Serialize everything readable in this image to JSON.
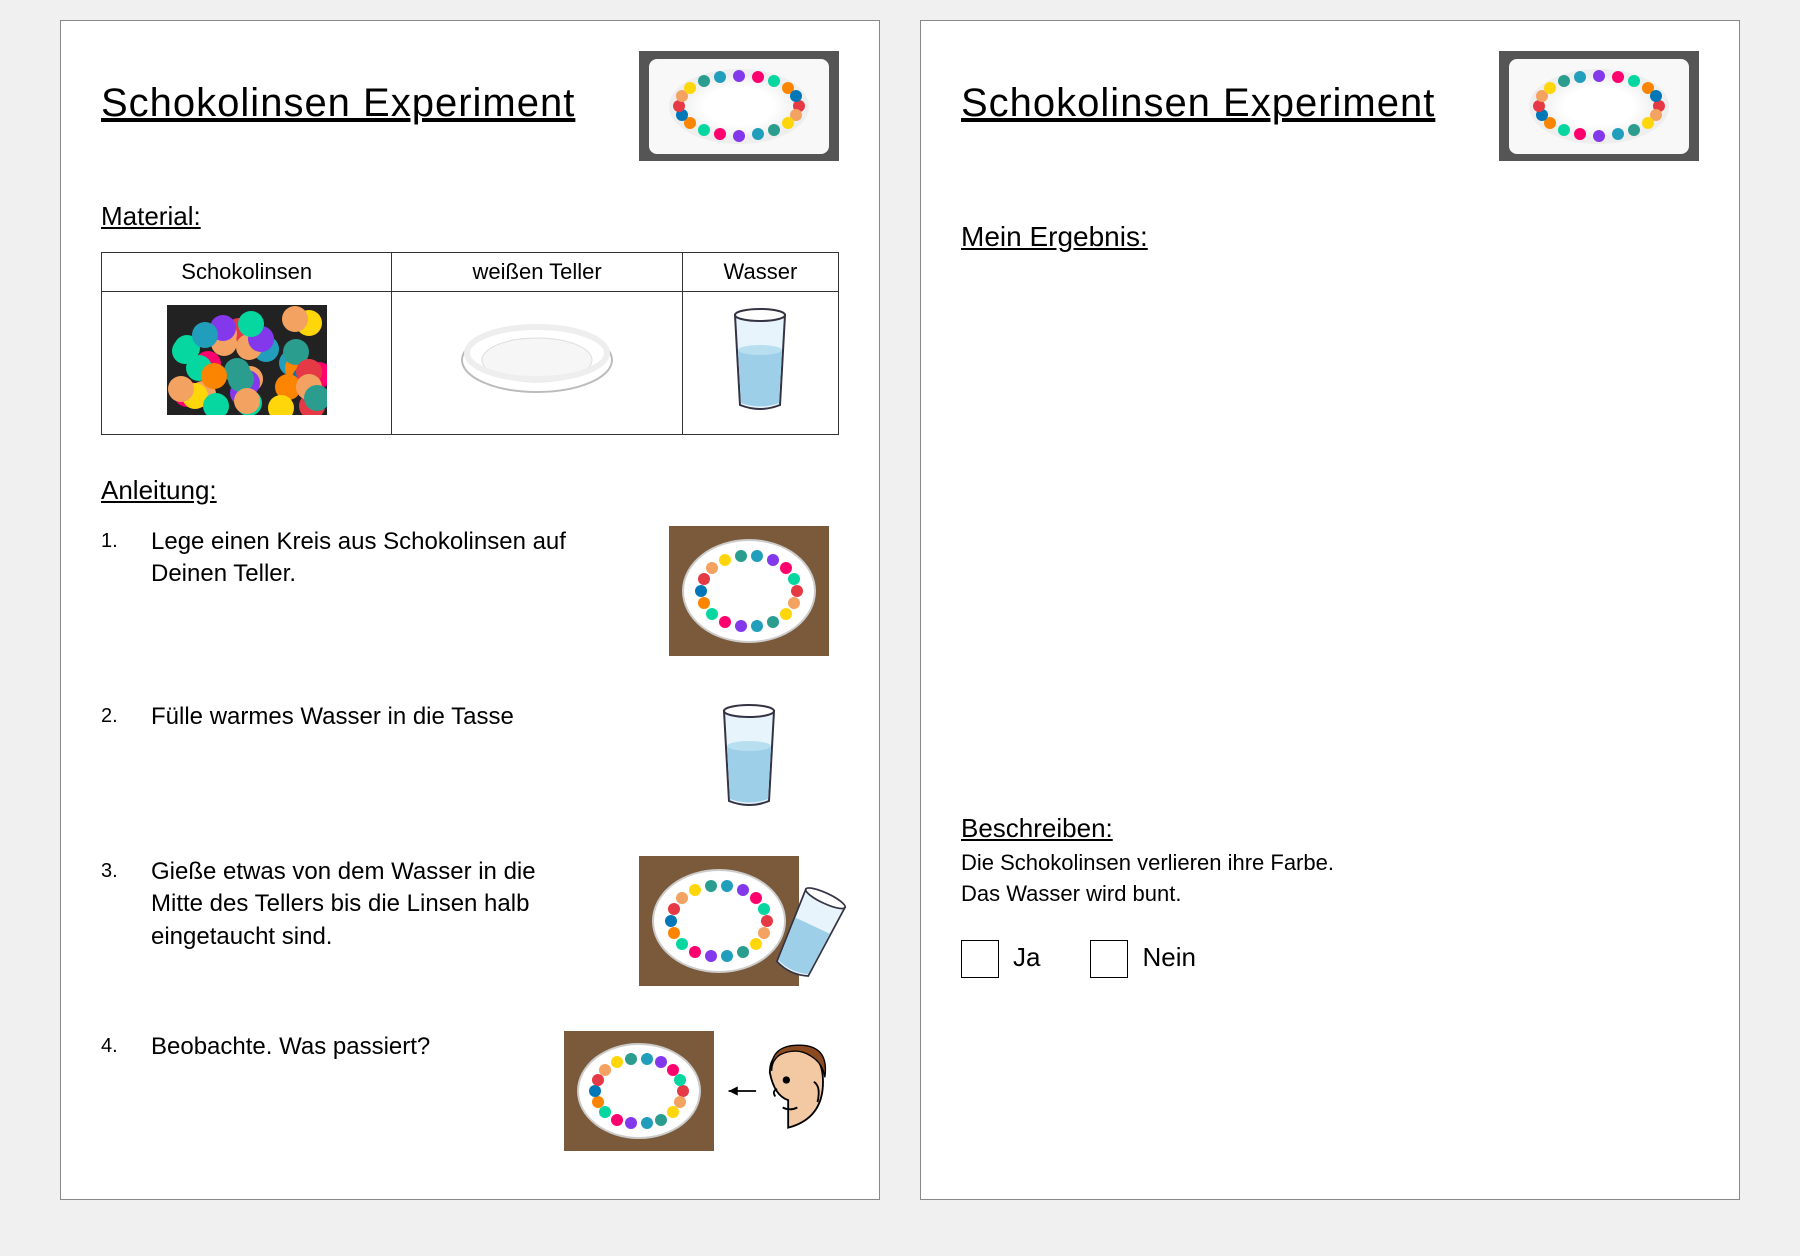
{
  "page1": {
    "title": "Schokolinsen Experiment",
    "material_label": "Material:",
    "material_headers": [
      "Schokolinsen",
      "weißen Teller",
      "Wasser"
    ],
    "anleitung_label": "Anleitung:",
    "steps": [
      "Lege einen Kreis aus Schokolinsen auf Deinen Teller.",
      "Fülle warmes Wasser in die Tasse",
      "Gieße etwas von dem Wasser in die Mitte des Tellers bis die Linsen halb eingetaucht sind.",
      "Beobachte. Was passiert?"
    ]
  },
  "page2": {
    "title": "Schokolinsen Experiment",
    "result_label": "Mein Ergebnis:",
    "beschreiben_label": "Beschreiben:",
    "beschreiben_line1": "Die Schokolinsen verlieren ihre Farbe.",
    "beschreiben_line2": "Das Wasser wird bunt.",
    "yes_label": "Ja",
    "no_label": "Nein"
  },
  "colors": {
    "candy_palette": [
      "#e63946",
      "#f4a261",
      "#ffd60a",
      "#2a9d8f",
      "#219ebc",
      "#8338ec",
      "#ff006e",
      "#06d6a0",
      "#fb8500",
      "#0077b6"
    ],
    "water": "#9ecfe8",
    "glass_outline": "#334",
    "plate_edge": "#cccccc",
    "wood": "#7a5a3a",
    "head_skin": "#f2c9a3",
    "head_hair": "#8b4a1f"
  }
}
